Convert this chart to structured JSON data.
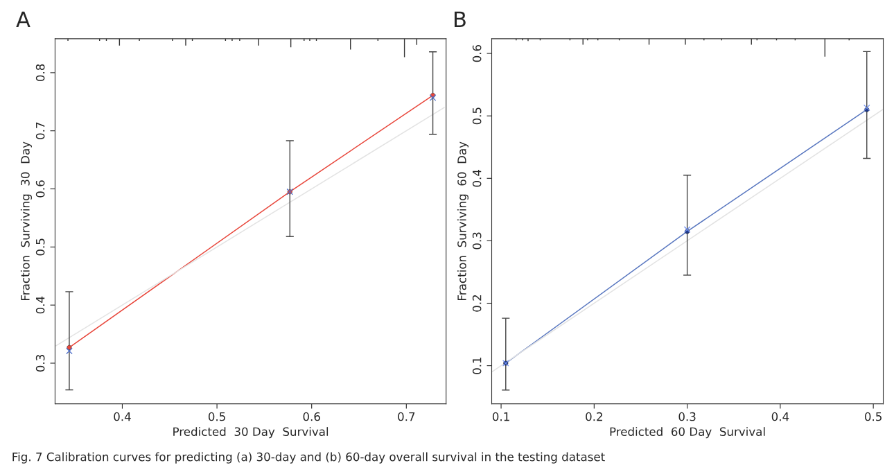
{
  "chart_data": [
    {
      "type": "line",
      "title": "A",
      "xlabel": "Predicted  30 Day  Survival",
      "ylabel": "Fraction  Surviving  30  Day",
      "xlim": [
        0.329,
        0.742
      ],
      "ylim": [
        0.23,
        0.8585
      ],
      "xticks": [
        0.4,
        0.5,
        0.6,
        0.7
      ],
      "yticks": [
        0.3,
        0.4,
        0.5,
        0.6,
        0.7,
        0.8
      ],
      "grid": false,
      "legend": false,
      "annotations": [
        "Fig. 7 Calibration curves for predicting (a) 30-day and (b) 60-day overall survival in the testing dataset"
      ],
      "series": [
        {
          "color": "#e8473c",
          "x": [
            0.344,
            0.577,
            0.728
          ],
          "values": [
            0.327,
            0.595,
            0.761
          ],
          "errors": [
            [
              0.254,
              0.423
            ],
            [
              0.518,
              0.683
            ],
            [
              0.694,
              0.836
            ]
          ],
          "marker": "circle"
        },
        {
          "type": "scatter",
          "color": "#4a6cc8",
          "x": [
            0.344,
            0.577,
            0.728
          ],
          "values": [
            0.321,
            0.595,
            0.757
          ],
          "marker": "cross"
        },
        {
          "color": "#e3e3e3",
          "x": [
            0.33,
            0.74
          ],
          "values": [
            0.33,
            0.74
          ],
          "marker": "none"
        },
        {
          "type": "bar",
          "color": "#333333",
          "x": [
            0.3426,
            0.376,
            0.3832,
            0.397,
            0.418,
            0.453,
            0.467,
            0.474,
            0.509,
            0.516,
            0.524,
            0.544,
            0.578,
            0.592,
            0.598,
            0.605,
            0.641,
            0.67,
            0.698,
            0.711
          ],
          "base": [
            0.8585,
            0.8585,
            0.8585,
            0.8585,
            0.8585,
            0.8585,
            0.8585,
            0.8585,
            0.8585,
            0.8585,
            0.8585,
            0.8585,
            0.8585,
            0.8585,
            0.8585,
            0.8585,
            0.8585,
            0.8585,
            0.8585,
            0.8585
          ],
          "values": [
            -0.003,
            -0.003,
            -0.003,
            -0.011,
            -0.003,
            -0.003,
            -0.011,
            -0.003,
            -0.003,
            -0.003,
            -0.003,
            -0.011,
            -0.014,
            -0.003,
            -0.003,
            -0.003,
            -0.018,
            -0.003,
            -0.031,
            -0.01
          ]
        }
      ]
    },
    {
      "type": "line",
      "title": "B",
      "xlabel": "Predicted  60 Day  Survival",
      "ylabel": "Fraction  Surviving  60  Day",
      "xlim": [
        0.0899,
        0.5107
      ],
      "ylim": [
        0.0389,
        0.6236
      ],
      "xticks": [
        0.1,
        0.2,
        0.3,
        0.4,
        0.5
      ],
      "yticks": [
        0.1,
        0.2,
        0.3,
        0.4,
        0.5,
        0.6
      ],
      "grid": false,
      "legend": false,
      "series": [
        {
          "color": "#5a78c0",
          "colors": [
            "#1f3a8a",
            "#1f3a8a",
            "#1f3a8a"
          ],
          "x": [
            0.105,
            0.3,
            0.493
          ],
          "values": [
            0.104,
            0.315,
            0.51
          ],
          "errors": [
            [
              0.061,
              0.176
            ],
            [
              0.245,
              0.405
            ],
            [
              0.432,
              0.603
            ]
          ],
          "marker": "circle"
        },
        {
          "type": "scatter",
          "color": "#6f8ff0",
          "x": [
            0.105,
            0.3,
            0.493
          ],
          "values": [
            0.104,
            0.318,
            0.513
          ],
          "marker": "cross"
        },
        {
          "color": "#e3e3e3",
          "x": [
            0.09,
            0.51
          ],
          "values": [
            0.09,
            0.51
          ],
          "marker": "none"
        },
        {
          "type": "bar",
          "color": "#333333",
          "x": [
            0.1162,
            0.123,
            0.129,
            0.142,
            0.174,
            0.188,
            0.193,
            0.204,
            0.227,
            0.259,
            0.298,
            0.318,
            0.337,
            0.369,
            0.375,
            0.396,
            0.416,
            0.448,
            0.474
          ],
          "base": [
            0.6236,
            0.6236,
            0.6236,
            0.6236,
            0.6236,
            0.6236,
            0.6236,
            0.6236,
            0.6236,
            0.6236,
            0.6236,
            0.6236,
            0.6236,
            0.6236,
            0.6236,
            0.6236,
            0.6236,
            0.6236,
            0.6236
          ],
          "values": [
            -0.002,
            -0.002,
            -0.003,
            -0.002,
            -0.002,
            -0.009,
            -0.002,
            -0.002,
            -0.002,
            -0.009,
            -0.009,
            -0.002,
            -0.002,
            -0.009,
            -0.002,
            -0.002,
            -0.002,
            -0.028,
            -0.002
          ]
        }
      ]
    }
  ]
}
